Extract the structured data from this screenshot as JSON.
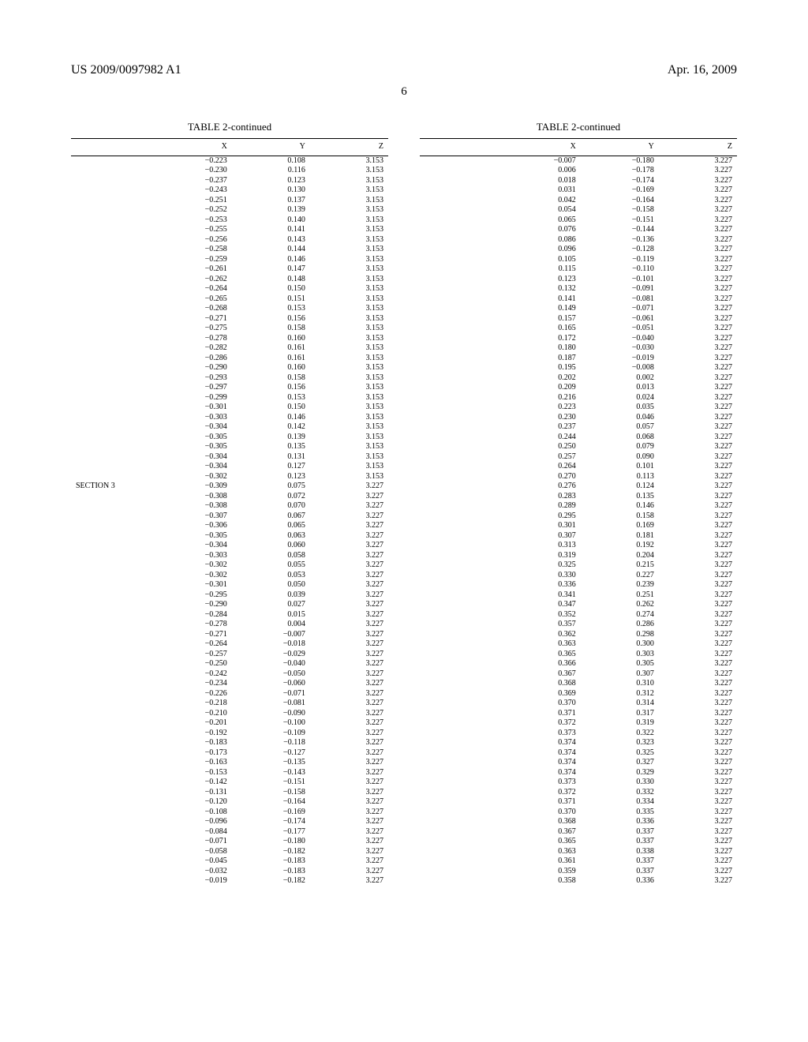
{
  "header": {
    "pub_no": "US 2009/0097982 A1",
    "date": "Apr. 16, 2009",
    "page_no": "6"
  },
  "table_title": "TABLE 2-continued",
  "columns": [
    "X",
    "Y",
    "Z"
  ],
  "left_rows": [
    {
      "s": "",
      "x": "−0.223",
      "y": "0.108",
      "z": "3.153"
    },
    {
      "s": "",
      "x": "−0.230",
      "y": "0.116",
      "z": "3.153"
    },
    {
      "s": "",
      "x": "−0.237",
      "y": "0.123",
      "z": "3.153"
    },
    {
      "s": "",
      "x": "−0.243",
      "y": "0.130",
      "z": "3.153"
    },
    {
      "s": "",
      "x": "−0.251",
      "y": "0.137",
      "z": "3.153"
    },
    {
      "s": "",
      "x": "−0.252",
      "y": "0.139",
      "z": "3.153"
    },
    {
      "s": "",
      "x": "−0.253",
      "y": "0.140",
      "z": "3.153"
    },
    {
      "s": "",
      "x": "−0.255",
      "y": "0.141",
      "z": "3.153"
    },
    {
      "s": "",
      "x": "−0.256",
      "y": "0.143",
      "z": "3.153"
    },
    {
      "s": "",
      "x": "−0.258",
      "y": "0.144",
      "z": "3.153"
    },
    {
      "s": "",
      "x": "−0.259",
      "y": "0.146",
      "z": "3.153"
    },
    {
      "s": "",
      "x": "−0.261",
      "y": "0.147",
      "z": "3.153"
    },
    {
      "s": "",
      "x": "−0.262",
      "y": "0.148",
      "z": "3.153"
    },
    {
      "s": "",
      "x": "−0.264",
      "y": "0.150",
      "z": "3.153"
    },
    {
      "s": "",
      "x": "−0.265",
      "y": "0.151",
      "z": "3.153"
    },
    {
      "s": "",
      "x": "−0.268",
      "y": "0.153",
      "z": "3.153"
    },
    {
      "s": "",
      "x": "−0.271",
      "y": "0.156",
      "z": "3.153"
    },
    {
      "s": "",
      "x": "−0.275",
      "y": "0.158",
      "z": "3.153"
    },
    {
      "s": "",
      "x": "−0.278",
      "y": "0.160",
      "z": "3.153"
    },
    {
      "s": "",
      "x": "−0.282",
      "y": "0.161",
      "z": "3.153"
    },
    {
      "s": "",
      "x": "−0.286",
      "y": "0.161",
      "z": "3.153"
    },
    {
      "s": "",
      "x": "−0.290",
      "y": "0.160",
      "z": "3.153"
    },
    {
      "s": "",
      "x": "−0.293",
      "y": "0.158",
      "z": "3.153"
    },
    {
      "s": "",
      "x": "−0.297",
      "y": "0.156",
      "z": "3.153"
    },
    {
      "s": "",
      "x": "−0.299",
      "y": "0.153",
      "z": "3.153"
    },
    {
      "s": "",
      "x": "−0.301",
      "y": "0.150",
      "z": "3.153"
    },
    {
      "s": "",
      "x": "−0.303",
      "y": "0.146",
      "z": "3.153"
    },
    {
      "s": "",
      "x": "−0.304",
      "y": "0.142",
      "z": "3.153"
    },
    {
      "s": "",
      "x": "−0.305",
      "y": "0.139",
      "z": "3.153"
    },
    {
      "s": "",
      "x": "−0.305",
      "y": "0.135",
      "z": "3.153"
    },
    {
      "s": "",
      "x": "−0.304",
      "y": "0.131",
      "z": "3.153"
    },
    {
      "s": "",
      "x": "−0.304",
      "y": "0.127",
      "z": "3.153"
    },
    {
      "s": "",
      "x": "−0.302",
      "y": "0.123",
      "z": "3.153"
    },
    {
      "s": "SECTION 3",
      "x": "−0.309",
      "y": "0.075",
      "z": "3.227"
    },
    {
      "s": "",
      "x": "−0.308",
      "y": "0.072",
      "z": "3.227"
    },
    {
      "s": "",
      "x": "−0.308",
      "y": "0.070",
      "z": "3.227"
    },
    {
      "s": "",
      "x": "−0.307",
      "y": "0.067",
      "z": "3.227"
    },
    {
      "s": "",
      "x": "−0.306",
      "y": "0.065",
      "z": "3.227"
    },
    {
      "s": "",
      "x": "−0.305",
      "y": "0.063",
      "z": "3.227"
    },
    {
      "s": "",
      "x": "−0.304",
      "y": "0.060",
      "z": "3.227"
    },
    {
      "s": "",
      "x": "−0.303",
      "y": "0.058",
      "z": "3.227"
    },
    {
      "s": "",
      "x": "−0.302",
      "y": "0.055",
      "z": "3.227"
    },
    {
      "s": "",
      "x": "−0.302",
      "y": "0.053",
      "z": "3.227"
    },
    {
      "s": "",
      "x": "−0.301",
      "y": "0.050",
      "z": "3.227"
    },
    {
      "s": "",
      "x": "−0.295",
      "y": "0.039",
      "z": "3.227"
    },
    {
      "s": "",
      "x": "−0.290",
      "y": "0.027",
      "z": "3.227"
    },
    {
      "s": "",
      "x": "−0.284",
      "y": "0.015",
      "z": "3.227"
    },
    {
      "s": "",
      "x": "−0.278",
      "y": "0.004",
      "z": "3.227"
    },
    {
      "s": "",
      "x": "−0.271",
      "y": "−0.007",
      "z": "3.227"
    },
    {
      "s": "",
      "x": "−0.264",
      "y": "−0.018",
      "z": "3.227"
    },
    {
      "s": "",
      "x": "−0.257",
      "y": "−0.029",
      "z": "3.227"
    },
    {
      "s": "",
      "x": "−0.250",
      "y": "−0.040",
      "z": "3.227"
    },
    {
      "s": "",
      "x": "−0.242",
      "y": "−0.050",
      "z": "3.227"
    },
    {
      "s": "",
      "x": "−0.234",
      "y": "−0.060",
      "z": "3.227"
    },
    {
      "s": "",
      "x": "−0.226",
      "y": "−0.071",
      "z": "3.227"
    },
    {
      "s": "",
      "x": "−0.218",
      "y": "−0.081",
      "z": "3.227"
    },
    {
      "s": "",
      "x": "−0.210",
      "y": "−0.090",
      "z": "3.227"
    },
    {
      "s": "",
      "x": "−0.201",
      "y": "−0.100",
      "z": "3.227"
    },
    {
      "s": "",
      "x": "−0.192",
      "y": "−0.109",
      "z": "3.227"
    },
    {
      "s": "",
      "x": "−0.183",
      "y": "−0.118",
      "z": "3.227"
    },
    {
      "s": "",
      "x": "−0.173",
      "y": "−0.127",
      "z": "3.227"
    },
    {
      "s": "",
      "x": "−0.163",
      "y": "−0.135",
      "z": "3.227"
    },
    {
      "s": "",
      "x": "−0.153",
      "y": "−0.143",
      "z": "3.227"
    },
    {
      "s": "",
      "x": "−0.142",
      "y": "−0.151",
      "z": "3.227"
    },
    {
      "s": "",
      "x": "−0.131",
      "y": "−0.158",
      "z": "3.227"
    },
    {
      "s": "",
      "x": "−0.120",
      "y": "−0.164",
      "z": "3.227"
    },
    {
      "s": "",
      "x": "−0.108",
      "y": "−0.169",
      "z": "3.227"
    },
    {
      "s": "",
      "x": "−0.096",
      "y": "−0.174",
      "z": "3.227"
    },
    {
      "s": "",
      "x": "−0.084",
      "y": "−0.177",
      "z": "3.227"
    },
    {
      "s": "",
      "x": "−0.071",
      "y": "−0.180",
      "z": "3.227"
    },
    {
      "s": "",
      "x": "−0.058",
      "y": "−0.182",
      "z": "3.227"
    },
    {
      "s": "",
      "x": "−0.045",
      "y": "−0.183",
      "z": "3.227"
    },
    {
      "s": "",
      "x": "−0.032",
      "y": "−0.183",
      "z": "3.227"
    },
    {
      "s": "",
      "x": "−0.019",
      "y": "−0.182",
      "z": "3.227"
    }
  ],
  "right_rows": [
    {
      "s": "",
      "x": "−0.007",
      "y": "−0.180",
      "z": "3.227"
    },
    {
      "s": "",
      "x": "0.006",
      "y": "−0.178",
      "z": "3.227"
    },
    {
      "s": "",
      "x": "0.018",
      "y": "−0.174",
      "z": "3.227"
    },
    {
      "s": "",
      "x": "0.031",
      "y": "−0.169",
      "z": "3.227"
    },
    {
      "s": "",
      "x": "0.042",
      "y": "−0.164",
      "z": "3.227"
    },
    {
      "s": "",
      "x": "0.054",
      "y": "−0.158",
      "z": "3.227"
    },
    {
      "s": "",
      "x": "0.065",
      "y": "−0.151",
      "z": "3.227"
    },
    {
      "s": "",
      "x": "0.076",
      "y": "−0.144",
      "z": "3.227"
    },
    {
      "s": "",
      "x": "0.086",
      "y": "−0.136",
      "z": "3.227"
    },
    {
      "s": "",
      "x": "0.096",
      "y": "−0.128",
      "z": "3.227"
    },
    {
      "s": "",
      "x": "0.105",
      "y": "−0.119",
      "z": "3.227"
    },
    {
      "s": "",
      "x": "0.115",
      "y": "−0.110",
      "z": "3.227"
    },
    {
      "s": "",
      "x": "0.123",
      "y": "−0.101",
      "z": "3.227"
    },
    {
      "s": "",
      "x": "0.132",
      "y": "−0.091",
      "z": "3.227"
    },
    {
      "s": "",
      "x": "0.141",
      "y": "−0.081",
      "z": "3.227"
    },
    {
      "s": "",
      "x": "0.149",
      "y": "−0.071",
      "z": "3.227"
    },
    {
      "s": "",
      "x": "0.157",
      "y": "−0.061",
      "z": "3.227"
    },
    {
      "s": "",
      "x": "0.165",
      "y": "−0.051",
      "z": "3.227"
    },
    {
      "s": "",
      "x": "0.172",
      "y": "−0.040",
      "z": "3.227"
    },
    {
      "s": "",
      "x": "0.180",
      "y": "−0.030",
      "z": "3.227"
    },
    {
      "s": "",
      "x": "0.187",
      "y": "−0.019",
      "z": "3.227"
    },
    {
      "s": "",
      "x": "0.195",
      "y": "−0.008",
      "z": "3.227"
    },
    {
      "s": "",
      "x": "0.202",
      "y": "0.002",
      "z": "3.227"
    },
    {
      "s": "",
      "x": "0.209",
      "y": "0.013",
      "z": "3.227"
    },
    {
      "s": "",
      "x": "0.216",
      "y": "0.024",
      "z": "3.227"
    },
    {
      "s": "",
      "x": "0.223",
      "y": "0.035",
      "z": "3.227"
    },
    {
      "s": "",
      "x": "0.230",
      "y": "0.046",
      "z": "3.227"
    },
    {
      "s": "",
      "x": "0.237",
      "y": "0.057",
      "z": "3.227"
    },
    {
      "s": "",
      "x": "0.244",
      "y": "0.068",
      "z": "3.227"
    },
    {
      "s": "",
      "x": "0.250",
      "y": "0.079",
      "z": "3.227"
    },
    {
      "s": "",
      "x": "0.257",
      "y": "0.090",
      "z": "3.227"
    },
    {
      "s": "",
      "x": "0.264",
      "y": "0.101",
      "z": "3.227"
    },
    {
      "s": "",
      "x": "0.270",
      "y": "0.113",
      "z": "3.227"
    },
    {
      "s": "",
      "x": "0.276",
      "y": "0.124",
      "z": "3.227"
    },
    {
      "s": "",
      "x": "0.283",
      "y": "0.135",
      "z": "3.227"
    },
    {
      "s": "",
      "x": "0.289",
      "y": "0.146",
      "z": "3.227"
    },
    {
      "s": "",
      "x": "0.295",
      "y": "0.158",
      "z": "3.227"
    },
    {
      "s": "",
      "x": "0.301",
      "y": "0.169",
      "z": "3.227"
    },
    {
      "s": "",
      "x": "0.307",
      "y": "0.181",
      "z": "3.227"
    },
    {
      "s": "",
      "x": "0.313",
      "y": "0.192",
      "z": "3.227"
    },
    {
      "s": "",
      "x": "0.319",
      "y": "0.204",
      "z": "3.227"
    },
    {
      "s": "",
      "x": "0.325",
      "y": "0.215",
      "z": "3.227"
    },
    {
      "s": "",
      "x": "0.330",
      "y": "0.227",
      "z": "3.227"
    },
    {
      "s": "",
      "x": "0.336",
      "y": "0.239",
      "z": "3.227"
    },
    {
      "s": "",
      "x": "0.341",
      "y": "0.251",
      "z": "3.227"
    },
    {
      "s": "",
      "x": "0.347",
      "y": "0.262",
      "z": "3.227"
    },
    {
      "s": "",
      "x": "0.352",
      "y": "0.274",
      "z": "3.227"
    },
    {
      "s": "",
      "x": "0.357",
      "y": "0.286",
      "z": "3.227"
    },
    {
      "s": "",
      "x": "0.362",
      "y": "0.298",
      "z": "3.227"
    },
    {
      "s": "",
      "x": "0.363",
      "y": "0.300",
      "z": "3.227"
    },
    {
      "s": "",
      "x": "0.365",
      "y": "0.303",
      "z": "3.227"
    },
    {
      "s": "",
      "x": "0.366",
      "y": "0.305",
      "z": "3.227"
    },
    {
      "s": "",
      "x": "0.367",
      "y": "0.307",
      "z": "3.227"
    },
    {
      "s": "",
      "x": "0.368",
      "y": "0.310",
      "z": "3.227"
    },
    {
      "s": "",
      "x": "0.369",
      "y": "0.312",
      "z": "3.227"
    },
    {
      "s": "",
      "x": "0.370",
      "y": "0.314",
      "z": "3.227"
    },
    {
      "s": "",
      "x": "0.371",
      "y": "0.317",
      "z": "3.227"
    },
    {
      "s": "",
      "x": "0.372",
      "y": "0.319",
      "z": "3.227"
    },
    {
      "s": "",
      "x": "0.373",
      "y": "0.322",
      "z": "3.227"
    },
    {
      "s": "",
      "x": "0.374",
      "y": "0.323",
      "z": "3.227"
    },
    {
      "s": "",
      "x": "0.374",
      "y": "0.325",
      "z": "3.227"
    },
    {
      "s": "",
      "x": "0.374",
      "y": "0.327",
      "z": "3.227"
    },
    {
      "s": "",
      "x": "0.374",
      "y": "0.329",
      "z": "3.227"
    },
    {
      "s": "",
      "x": "0.373",
      "y": "0.330",
      "z": "3.227"
    },
    {
      "s": "",
      "x": "0.372",
      "y": "0.332",
      "z": "3.227"
    },
    {
      "s": "",
      "x": "0.371",
      "y": "0.334",
      "z": "3.227"
    },
    {
      "s": "",
      "x": "0.370",
      "y": "0.335",
      "z": "3.227"
    },
    {
      "s": "",
      "x": "0.368",
      "y": "0.336",
      "z": "3.227"
    },
    {
      "s": "",
      "x": "0.367",
      "y": "0.337",
      "z": "3.227"
    },
    {
      "s": "",
      "x": "0.365",
      "y": "0.337",
      "z": "3.227"
    },
    {
      "s": "",
      "x": "0.363",
      "y": "0.338",
      "z": "3.227"
    },
    {
      "s": "",
      "x": "0.361",
      "y": "0.337",
      "z": "3.227"
    },
    {
      "s": "",
      "x": "0.359",
      "y": "0.337",
      "z": "3.227"
    },
    {
      "s": "",
      "x": "0.358",
      "y": "0.336",
      "z": "3.227"
    }
  ]
}
